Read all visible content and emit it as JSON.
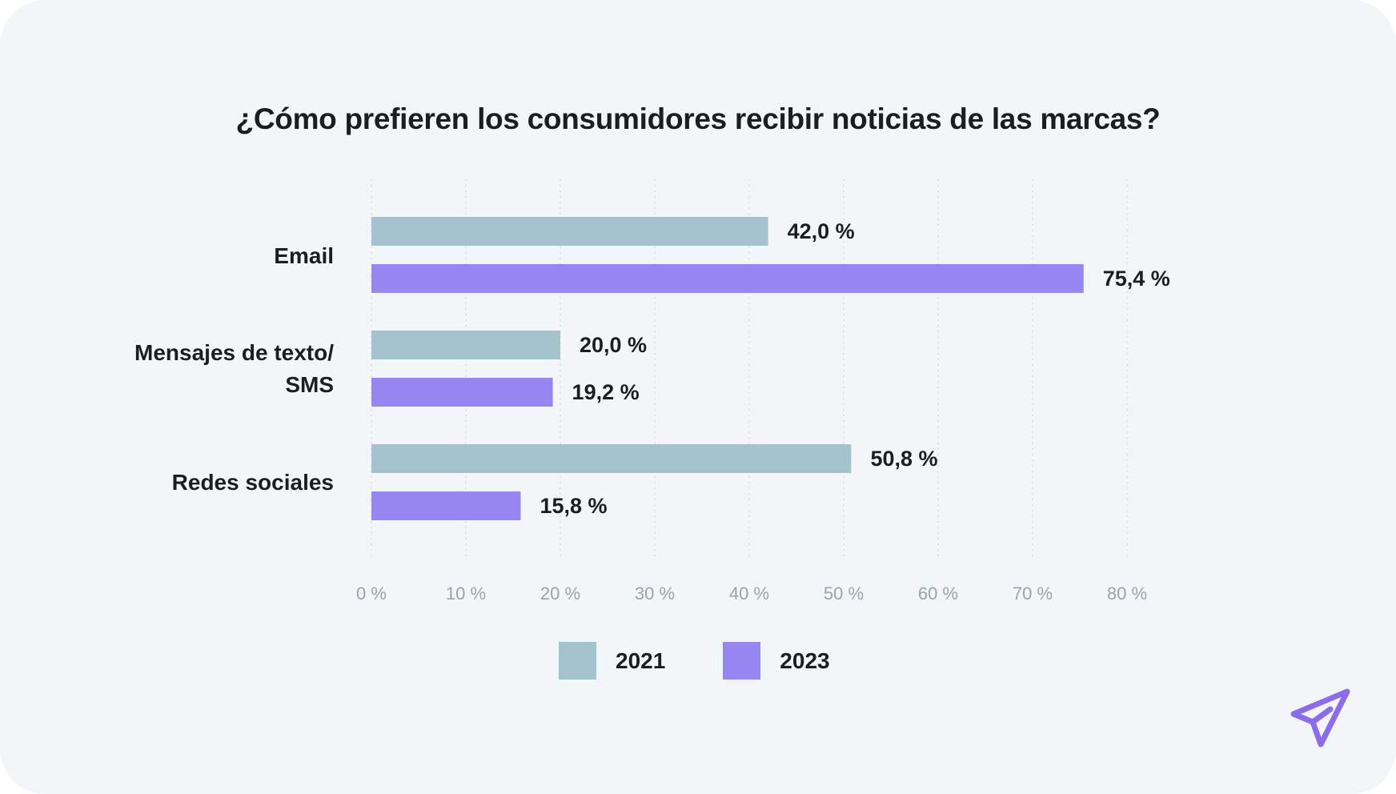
{
  "title": "¿Cómo prefieren los consumidores recibir noticias de las marcas?",
  "categories": [
    {
      "label_line1": "Email",
      "label_line2": ""
    },
    {
      "label_line1": "Mensajes de texto/",
      "label_line2": "SMS"
    },
    {
      "label_line1": "Redes sociales",
      "label_line2": ""
    }
  ],
  "legend": [
    {
      "label": "2021",
      "color": "#a3c4cd"
    },
    {
      "label": "2023",
      "color": "#9785f2"
    }
  ],
  "chart_data": {
    "type": "bar",
    "orientation": "horizontal",
    "title": "¿Cómo prefieren los consumidores recibir noticias de las marcas?",
    "categories": [
      "Email",
      "Mensajes de texto/SMS",
      "Redes sociales"
    ],
    "series": [
      {
        "name": "2021",
        "values": [
          42.0,
          20.0,
          50.8
        ],
        "labels": [
          "42,0 %",
          "20,0 %",
          "50,8 %"
        ],
        "color": "#a3c4cd"
      },
      {
        "name": "2023",
        "values": [
          75.4,
          19.2,
          15.8
        ],
        "labels": [
          "75,4 %",
          "19,2 %",
          "15,8 %"
        ],
        "color": "#9785f2"
      }
    ],
    "xlim": [
      0,
      80
    ],
    "xticks": [
      0,
      10,
      20,
      30,
      40,
      50,
      60,
      70,
      80
    ],
    "xtick_labels": [
      "0 %",
      "10 %",
      "20 %",
      "30 %",
      "40 %",
      "50 %",
      "60 %",
      "70 %",
      "80 %"
    ],
    "grid": "vertical dotted",
    "legend_position": "bottom-center"
  },
  "brand_icon": "paper-plane-icon",
  "colors": {
    "background": "#f3f6f9",
    "text": "#1c1d21",
    "tick_text": "#9aa3ad",
    "grid": "#d5dbe1",
    "accent": "#8b6cf0"
  }
}
